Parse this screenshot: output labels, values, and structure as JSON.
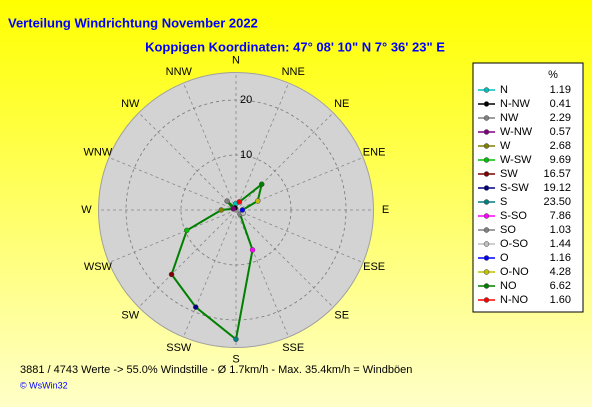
{
  "chart_data": {
    "type": "polar",
    "title": "Verteilung Windrichtung   November 2022",
    "subtitle": "Koppigen  Koordinaten: 47° 08' 10\" N  7° 36' 23\" E",
    "categories": [
      "N",
      "NNW",
      "NW",
      "WNW",
      "W",
      "WSW",
      "SW",
      "SSW",
      "S",
      "SSE",
      "SE",
      "ESE",
      "E",
      "ENE",
      "NE",
      "NNE"
    ],
    "legend_title": "%",
    "legend_names": [
      "N",
      "N-NW",
      "NW",
      "W-NW",
      "W",
      "W-SW",
      "SW",
      "S-SW",
      "S",
      "S-SO",
      "SO",
      "O-SO",
      "O",
      "O-NO",
      "NO",
      "N-NO"
    ],
    "values": [
      1.19,
      0.41,
      2.29,
      0.57,
      2.68,
      9.69,
      16.57,
      19.12,
      23.5,
      7.86,
      1.03,
      1.44,
      1.16,
      4.28,
      6.62,
      1.6
    ],
    "value_labels": [
      "1.19",
      "0.41",
      "2.29",
      "0.57",
      "2.68",
      "9.69",
      "16.57",
      "19.12",
      "23.50",
      "7.86",
      "1.03",
      "1.44",
      "1.16",
      "4.28",
      "6.62",
      "1.60"
    ],
    "colors": [
      "#00c0c0",
      "#000000",
      "#808080",
      "#800080",
      "#808000",
      "#00c000",
      "#800000",
      "#000080",
      "#008080",
      "#ff00ff",
      "#808080",
      "#c0c0c0",
      "#0000ff",
      "#c0c000",
      "#008000",
      "#ff0000"
    ],
    "line_color": "#008000",
    "rlim": [
      0,
      25
    ],
    "rticks": [
      10,
      20
    ],
    "footer": "3881 / 4743 Werte  -> 55.0% Windstille   -   Ø 1.7km/h  -  Max. 35.4km/h = Windböen",
    "credit": "© WsWin32"
  }
}
